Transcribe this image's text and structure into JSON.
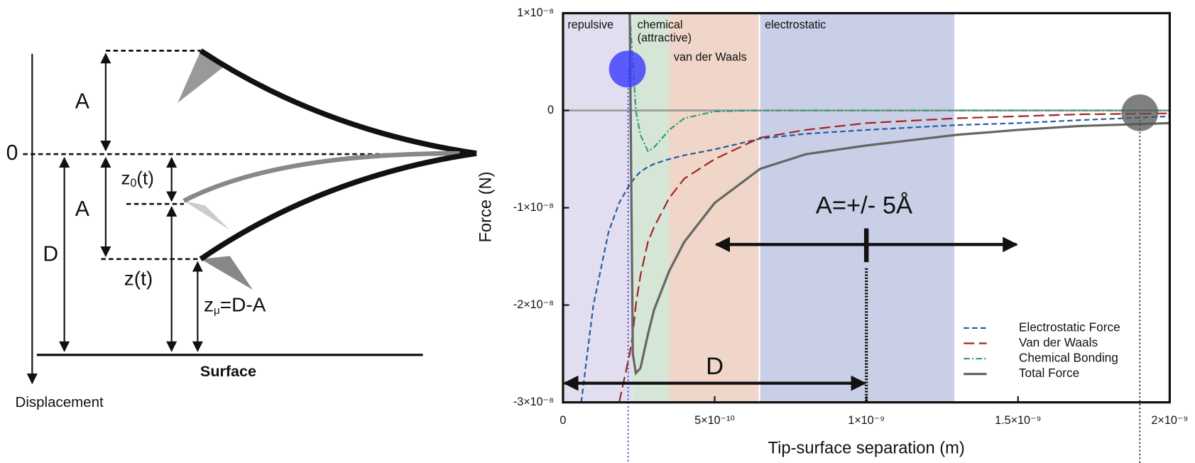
{
  "diagram": {
    "zero": "0",
    "amplitude_top": "A",
    "amplitude_bottom": "A",
    "z0": {
      "base": "z",
      "sub": "0",
      "rest": "(t)"
    },
    "distance": "D",
    "z": "z(t)",
    "zmu": {
      "base": "z",
      "sub": "μ",
      "rest": "=D-A"
    },
    "surface": "Surface",
    "axis_label": "Displacement"
  },
  "chart_data": {
    "type": "line",
    "xlabel": "Tip-surface separation (m)",
    "ylabel": "Force (N)",
    "xlim": [
      0,
      2e-09
    ],
    "ylim": [
      -3e-08,
      1e-08
    ],
    "xticks": [
      0,
      {
        "value": 5e-10,
        "label": "5×10⁻¹⁰"
      },
      {
        "value": 1e-09,
        "label": "1×10⁻⁹"
      },
      {
        "value": 1.5e-09,
        "label": "1.5×10⁻⁹"
      },
      {
        "value": 2e-09,
        "label": "2×10⁻⁹"
      }
    ],
    "yticks": [
      {
        "value": 1e-08,
        "label": "1×10⁻⁸"
      },
      0,
      {
        "value": -1e-08,
        "label": "-1×10⁻⁸"
      },
      {
        "value": -2e-08,
        "label": "-2×10⁻⁸"
      },
      {
        "value": -3e-08,
        "label": "-3×10⁻⁸"
      }
    ],
    "zero_line": true,
    "legend": "lower right",
    "regions": [
      {
        "label": "repulsive",
        "start": 0,
        "end": 2.3e-10,
        "color": "#e2deef"
      },
      {
        "label": "chemical",
        "sublabel": "(attractive)",
        "start": 2.3e-10,
        "end": 3.5e-10,
        "color": "#d5e6d6"
      },
      {
        "label": "van der Waals",
        "start": 3.5e-10,
        "end": 6.45e-10,
        "color": "#efd6c9"
      },
      {
        "label": "electrostatic",
        "start": 6.5e-10,
        "end": 1.29e-09,
        "color": "#c9cfe6"
      }
    ],
    "annotations": {
      "amplitude": "A=+/- 5Å",
      "distance": "D"
    },
    "x": [
      6e-11,
      1e-10,
      1.5e-10,
      1.85e-10,
      2.2e-10,
      2.3e-10,
      2.4e-10,
      2.55e-10,
      2.8e-10,
      3e-10,
      3.5e-10,
      4e-10,
      5e-10,
      6.5e-10,
      8e-10,
      1e-09,
      1.3e-09,
      1.5e-09,
      1.7e-09,
      2e-09
    ],
    "series": [
      {
        "name": "Electrostatic Force",
        "color": "#1f5b9e",
        "style": "dashed",
        "values": [
          -3e-08,
          -2e-08,
          -1.25e-08,
          -9.5e-09,
          -7.6e-09,
          -7.2e-09,
          -6.8e-09,
          -6.3e-09,
          -5.8e-09,
          -5.5e-09,
          -5e-09,
          -4.6e-09,
          -4e-09,
          -2.9e-09,
          -2.4e-09,
          -2e-09,
          -1.5e-09,
          -1.3e-09,
          -1e-09,
          -6e-10
        ]
      },
      {
        "name": "Van der Waals",
        "color": "#a3201f",
        "style": "long-dashed",
        "values": [
          null,
          null,
          null,
          -3e-08,
          -2.5e-08,
          -2.3e-08,
          -2e-08,
          -1.7e-08,
          -1.35e-08,
          -1.2e-08,
          -9e-09,
          -7e-09,
          -5e-09,
          -2.8e-09,
          -2e-09,
          -1.3e-09,
          -8e-10,
          -6e-10,
          -4e-10,
          -3e-10
        ]
      },
      {
        "name": "Chemical Bonding",
        "color": "#2e9a7a",
        "style": "dash-dot",
        "values": [
          null,
          null,
          null,
          null,
          1e-08,
          5e-09,
          0,
          -2.5e-09,
          -4.2e-09,
          -3.8e-09,
          -2e-09,
          -8e-10,
          -1e-10,
          0,
          0,
          0,
          0,
          0,
          0,
          0
        ]
      },
      {
        "name": "Total Force",
        "color": "#666666",
        "style": "solid",
        "values": [
          null,
          null,
          null,
          null,
          1e-08,
          -2.5e-08,
          -2.7e-08,
          -2.65e-08,
          -2.3e-08,
          -2.05e-08,
          -1.65e-08,
          -1.35e-08,
          -9.5e-09,
          -6e-09,
          -4.5e-09,
          -3.6e-09,
          -2.5e-09,
          -2e-09,
          -1.6e-09,
          -1.3e-09
        ]
      }
    ]
  }
}
